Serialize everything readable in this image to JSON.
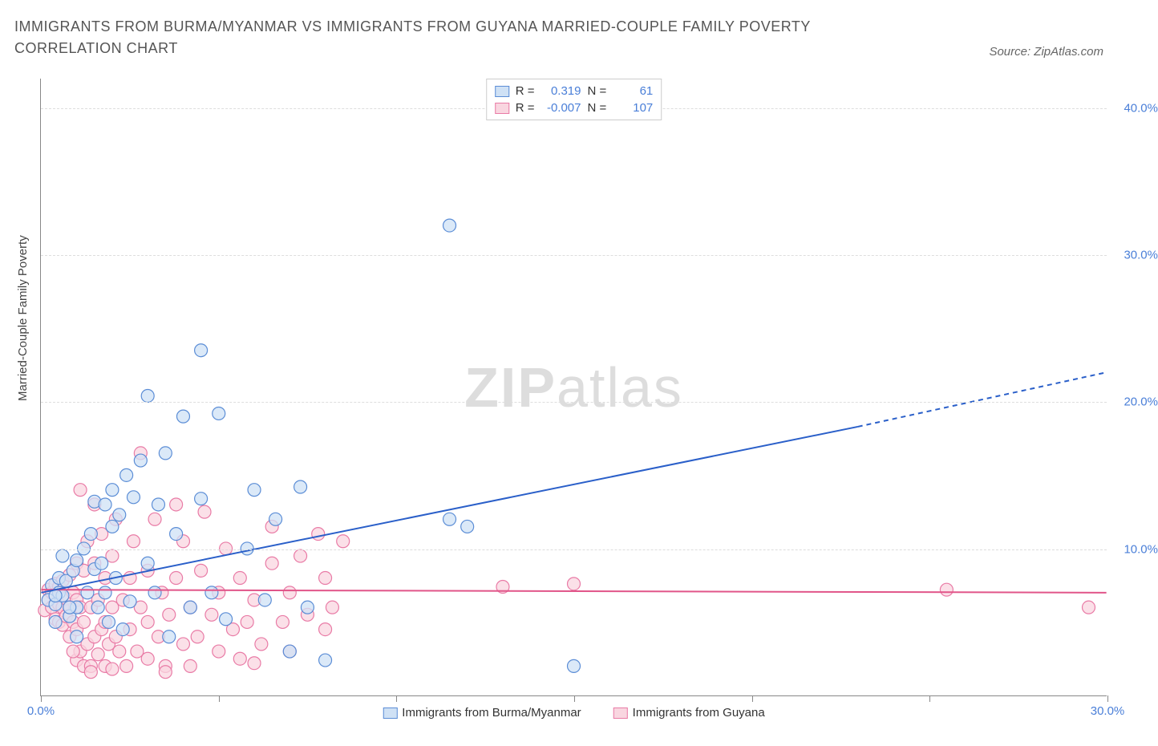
{
  "title": "IMMIGRANTS FROM BURMA/MYANMAR VS IMMIGRANTS FROM GUYANA MARRIED-COUPLE FAMILY POVERTY CORRELATION CHART",
  "source": "Source: ZipAtlas.com",
  "ylabel": "Married-Couple Family Poverty",
  "watermark_zip": "ZIP",
  "watermark_atlas": "atlas",
  "chart": {
    "type": "scatter",
    "xlim": [
      0,
      30
    ],
    "ylim": [
      0,
      42
    ],
    "xticks": [
      0,
      5,
      10,
      15,
      20,
      25,
      30
    ],
    "xtick_labels": [
      "0.0%",
      "",
      "",
      "",
      "",
      "",
      "30.0%"
    ],
    "yticks": [
      10,
      20,
      30,
      40
    ],
    "ytick_labels": [
      "10.0%",
      "20.0%",
      "30.0%",
      "40.0%"
    ],
    "grid_color": "#dddddd",
    "background_color": "#ffffff",
    "series": [
      {
        "name": "Immigrants from Burma/Myanmar",
        "short": "burma",
        "marker_fill": "#cfe1f5",
        "marker_stroke": "#5b8dd6",
        "marker_r": 8,
        "R": "0.319",
        "N": "61",
        "trend": {
          "x1": 0,
          "y1": 7.0,
          "x2": 23,
          "y2": 18.3,
          "x3": 30,
          "y3": 22.0,
          "color": "#2a5fc9",
          "width": 2
        },
        "points": [
          [
            0.2,
            6.5
          ],
          [
            0.3,
            7.5
          ],
          [
            0.4,
            6.2
          ],
          [
            0.5,
            7.0
          ],
          [
            0.5,
            8.0
          ],
          [
            0.6,
            6.8
          ],
          [
            0.7,
            7.8
          ],
          [
            0.8,
            5.4
          ],
          [
            0.9,
            8.5
          ],
          [
            1.0,
            6.0
          ],
          [
            1.0,
            9.2
          ],
          [
            1.2,
            10.0
          ],
          [
            1.3,
            7.0
          ],
          [
            1.4,
            11.0
          ],
          [
            1.5,
            8.6
          ],
          [
            1.5,
            13.2
          ],
          [
            1.6,
            6.0
          ],
          [
            1.7,
            9.0
          ],
          [
            1.8,
            13.0
          ],
          [
            1.8,
            7.0
          ],
          [
            2.0,
            11.5
          ],
          [
            2.0,
            14.0
          ],
          [
            2.1,
            8.0
          ],
          [
            2.2,
            12.3
          ],
          [
            2.4,
            15.0
          ],
          [
            2.5,
            6.4
          ],
          [
            2.6,
            13.5
          ],
          [
            2.8,
            16.0
          ],
          [
            3.0,
            9.0
          ],
          [
            3.0,
            20.4
          ],
          [
            3.2,
            7.0
          ],
          [
            3.3,
            13.0
          ],
          [
            3.5,
            16.5
          ],
          [
            3.6,
            4.0
          ],
          [
            3.8,
            11.0
          ],
          [
            4.0,
            19.0
          ],
          [
            4.2,
            6.0
          ],
          [
            4.5,
            23.5
          ],
          [
            4.5,
            13.4
          ],
          [
            4.8,
            7.0
          ],
          [
            5.0,
            19.2
          ],
          [
            5.2,
            5.2
          ],
          [
            5.8,
            10.0
          ],
          [
            6.0,
            14.0
          ],
          [
            6.3,
            6.5
          ],
          [
            6.6,
            12.0
          ],
          [
            7.0,
            3.0
          ],
          [
            7.3,
            14.2
          ],
          [
            7.5,
            6.0
          ],
          [
            8.0,
            2.4
          ],
          [
            11.5,
            12.0
          ],
          [
            11.5,
            32.0
          ],
          [
            12.0,
            11.5
          ],
          [
            15.0,
            2.0
          ],
          [
            1.0,
            4.0
          ],
          [
            0.4,
            5.0
          ],
          [
            0.6,
            9.5
          ],
          [
            1.9,
            5.0
          ],
          [
            2.3,
            4.5
          ],
          [
            0.4,
            6.8
          ],
          [
            0.8,
            6.0
          ]
        ]
      },
      {
        "name": "Immigrants from Guyana",
        "short": "guyana",
        "marker_fill": "#f9d6e0",
        "marker_stroke": "#e97ba6",
        "marker_r": 8,
        "R": "-0.007",
        "N": "107",
        "trend": {
          "x1": 0,
          "y1": 7.2,
          "x2": 30,
          "y2": 7.0,
          "color": "#e15589",
          "width": 2
        },
        "points": [
          [
            0.1,
            5.8
          ],
          [
            0.2,
            6.5
          ],
          [
            0.2,
            7.2
          ],
          [
            0.3,
            6.0
          ],
          [
            0.3,
            7.0
          ],
          [
            0.4,
            5.2
          ],
          [
            0.4,
            6.8
          ],
          [
            0.4,
            7.6
          ],
          [
            0.5,
            5.0
          ],
          [
            0.5,
            6.2
          ],
          [
            0.5,
            7.4
          ],
          [
            0.6,
            4.8
          ],
          [
            0.6,
            6.0
          ],
          [
            0.6,
            7.8
          ],
          [
            0.7,
            5.4
          ],
          [
            0.7,
            6.6
          ],
          [
            0.8,
            4.0
          ],
          [
            0.8,
            6.0
          ],
          [
            0.8,
            8.2
          ],
          [
            0.9,
            5.0
          ],
          [
            0.9,
            7.0
          ],
          [
            1.0,
            2.4
          ],
          [
            1.0,
            4.5
          ],
          [
            1.0,
            6.5
          ],
          [
            1.0,
            9.0
          ],
          [
            1.1,
            3.0
          ],
          [
            1.1,
            6.0
          ],
          [
            1.2,
            2.0
          ],
          [
            1.2,
            5.0
          ],
          [
            1.2,
            8.5
          ],
          [
            1.3,
            3.5
          ],
          [
            1.3,
            10.5
          ],
          [
            1.4,
            2.0
          ],
          [
            1.4,
            6.0
          ],
          [
            1.5,
            4.0
          ],
          [
            1.5,
            9.0
          ],
          [
            1.5,
            13.0
          ],
          [
            1.6,
            2.8
          ],
          [
            1.6,
            6.5
          ],
          [
            1.7,
            4.5
          ],
          [
            1.7,
            11.0
          ],
          [
            1.8,
            2.0
          ],
          [
            1.8,
            5.0
          ],
          [
            1.8,
            8.0
          ],
          [
            1.9,
            3.5
          ],
          [
            2.0,
            1.8
          ],
          [
            2.0,
            6.0
          ],
          [
            2.0,
            9.5
          ],
          [
            2.1,
            4.0
          ],
          [
            2.1,
            12.0
          ],
          [
            2.2,
            3.0
          ],
          [
            2.3,
            6.5
          ],
          [
            2.4,
            2.0
          ],
          [
            2.5,
            4.5
          ],
          [
            2.5,
            8.0
          ],
          [
            2.6,
            10.5
          ],
          [
            2.7,
            3.0
          ],
          [
            2.8,
            6.0
          ],
          [
            2.8,
            16.5
          ],
          [
            3.0,
            2.5
          ],
          [
            3.0,
            5.0
          ],
          [
            3.0,
            8.5
          ],
          [
            3.2,
            12.0
          ],
          [
            3.3,
            4.0
          ],
          [
            3.4,
            7.0
          ],
          [
            3.5,
            2.0
          ],
          [
            3.6,
            5.5
          ],
          [
            3.8,
            8.0
          ],
          [
            3.8,
            13.0
          ],
          [
            4.0,
            3.5
          ],
          [
            4.0,
            10.5
          ],
          [
            4.2,
            6.0
          ],
          [
            4.4,
            4.0
          ],
          [
            4.5,
            8.5
          ],
          [
            4.6,
            12.5
          ],
          [
            4.8,
            5.5
          ],
          [
            5.0,
            3.0
          ],
          [
            5.0,
            7.0
          ],
          [
            5.2,
            10.0
          ],
          [
            5.4,
            4.5
          ],
          [
            5.6,
            8.0
          ],
          [
            5.8,
            5.0
          ],
          [
            6.0,
            6.5
          ],
          [
            6.2,
            3.5
          ],
          [
            6.5,
            9.0
          ],
          [
            6.5,
            11.5
          ],
          [
            6.8,
            5.0
          ],
          [
            7.0,
            7.0
          ],
          [
            7.0,
            3.0
          ],
          [
            7.3,
            9.5
          ],
          [
            7.5,
            5.5
          ],
          [
            7.8,
            11.0
          ],
          [
            8.0,
            4.5
          ],
          [
            8.0,
            8.0
          ],
          [
            8.2,
            6.0
          ],
          [
            8.5,
            10.5
          ],
          [
            13.0,
            7.4
          ],
          [
            15.0,
            7.6
          ],
          [
            25.5,
            7.2
          ],
          [
            29.5,
            6.0
          ],
          [
            3.5,
            1.6
          ],
          [
            4.2,
            2.0
          ],
          [
            5.6,
            2.5
          ],
          [
            6.0,
            2.2
          ],
          [
            1.4,
            1.6
          ],
          [
            0.9,
            3.0
          ],
          [
            1.1,
            14.0
          ]
        ]
      }
    ]
  },
  "legend": {
    "r_label": "R =",
    "n_label": "N ="
  }
}
